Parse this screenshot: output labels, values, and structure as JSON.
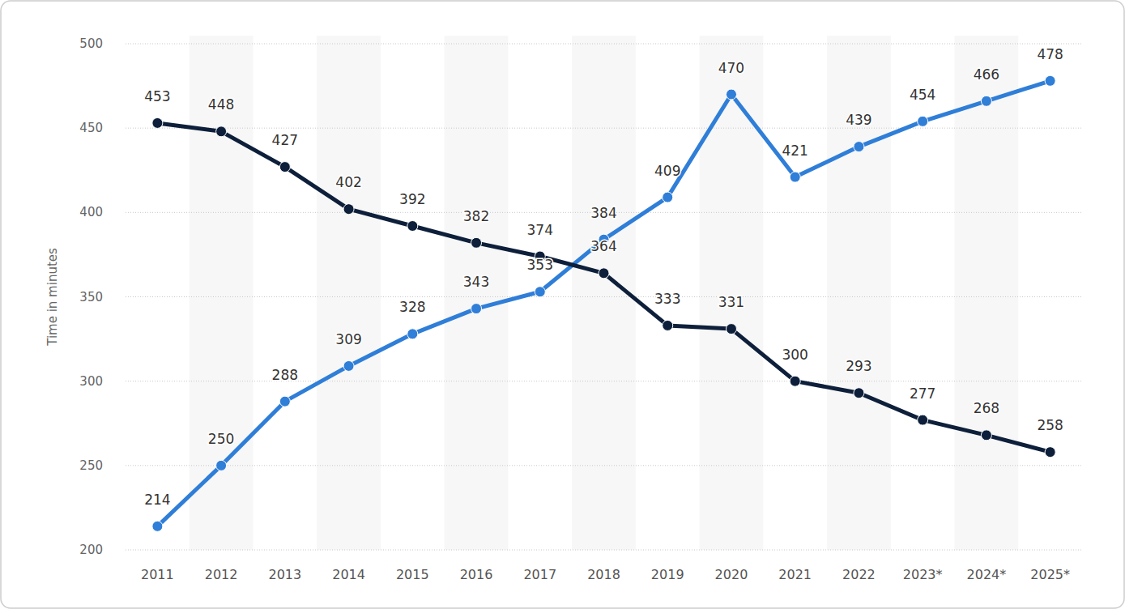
{
  "chart_data": {
    "type": "line",
    "y_label": "Time in minutes",
    "categories": [
      "2011",
      "2012",
      "2013",
      "2014",
      "2015",
      "2016",
      "2017",
      "2018",
      "2019",
      "2020",
      "2021",
      "2022",
      "2023*",
      "2024*",
      "2025*"
    ],
    "series": [
      {
        "color": "#2f7ed8",
        "marker": "circle",
        "line_style": "solid",
        "values": [
          214,
          250,
          288,
          309,
          328,
          343,
          353,
          384,
          409,
          470,
          421,
          439,
          454,
          466,
          478
        ]
      },
      {
        "color": "#0d1f3a",
        "marker": "circle",
        "line_style": "solid",
        "values": [
          453,
          448,
          427,
          402,
          392,
          382,
          374,
          364,
          333,
          331,
          300,
          293,
          277,
          268,
          258
        ]
      }
    ],
    "ylim": [
      200,
      500
    ],
    "yticks": [
      200,
      250,
      300,
      350,
      400,
      450,
      500
    ],
    "grid": true,
    "data_labels": true
  }
}
